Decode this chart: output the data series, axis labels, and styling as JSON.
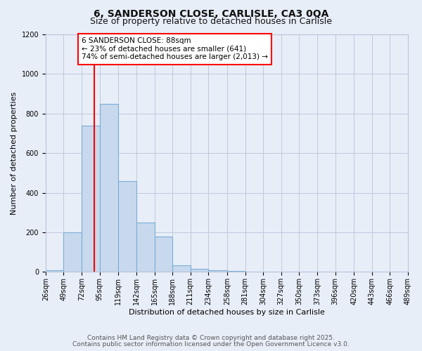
{
  "title": "6, SANDERSON CLOSE, CARLISLE, CA3 0QA",
  "subtitle": "Size of property relative to detached houses in Carlisle",
  "xlabel": "Distribution of detached houses by size in Carlisle",
  "ylabel": "Number of detached properties",
  "bar_color": "#c8d9ee",
  "bar_edge_color": "#7aadd4",
  "background_color": "#e8eef8",
  "property_line_x": 88,
  "property_line_color": "red",
  "annotation_line1": "6 SANDERSON CLOSE: 88sqm",
  "annotation_line2": "← 23% of detached houses are smaller (641)",
  "annotation_line3": "74% of semi-detached houses are larger (2,013) →",
  "annotation_box_color": "white",
  "annotation_box_edge": "red",
  "ylim": [
    0,
    1200
  ],
  "yticks": [
    0,
    200,
    400,
    600,
    800,
    1000,
    1200
  ],
  "bin_edges": [
    26,
    49,
    72,
    95,
    119,
    142,
    165,
    188,
    211,
    234,
    258,
    281,
    304,
    327,
    350,
    373,
    396,
    420,
    443,
    466,
    489
  ],
  "bar_heights": [
    10,
    200,
    740,
    850,
    460,
    248,
    178,
    35,
    15,
    10,
    5,
    2,
    1,
    1,
    1,
    0,
    0,
    0,
    0,
    0
  ],
  "tick_labels": [
    "26sqm",
    "49sqm",
    "72sqm",
    "95sqm",
    "119sqm",
    "142sqm",
    "165sqm",
    "188sqm",
    "211sqm",
    "234sqm",
    "258sqm",
    "281sqm",
    "304sqm",
    "327sqm",
    "350sqm",
    "373sqm",
    "396sqm",
    "420sqm",
    "443sqm",
    "466sqm",
    "489sqm"
  ],
  "footer_line1": "Contains HM Land Registry data © Crown copyright and database right 2025.",
  "footer_line2": "Contains public sector information licensed under the Open Government Licence v3.0.",
  "grid_color": "#b8c4d8",
  "title_fontsize": 10,
  "subtitle_fontsize": 9,
  "axis_label_fontsize": 8,
  "tick_fontsize": 7,
  "footer_fontsize": 6.5,
  "ann_fontsize": 7.5
}
